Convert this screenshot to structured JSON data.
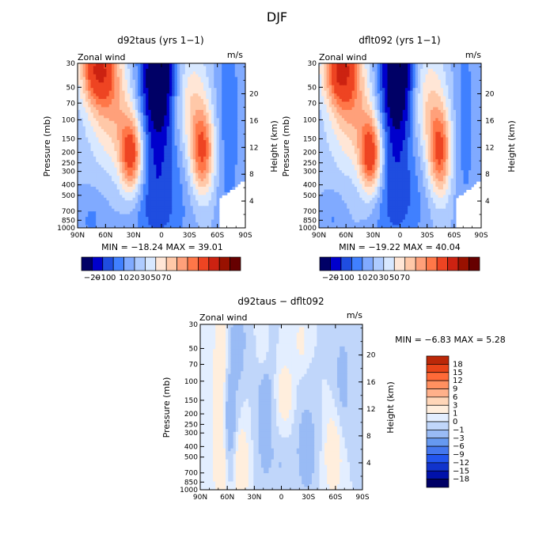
{
  "figure": {
    "title": "DJF"
  },
  "colors": {
    "main_scale": [
      "#000066",
      "#0000cc",
      "#1f4de0",
      "#4080ff",
      "#80aaff",
      "#aecbff",
      "#d8e8ff",
      "#ffe6d6",
      "#ffc8a8",
      "#ffa07a",
      "#ff7748",
      "#ee4422",
      "#cc2211",
      "#991100",
      "#660000"
    ],
    "diff_scale": [
      "#000066",
      "#0011aa",
      "#1133cc",
      "#2255ee",
      "#4477ee",
      "#6699f0",
      "#99bbf5",
      "#c0d6fa",
      "#e3eeff",
      "#ffeedd",
      "#ffd6b8",
      "#ffb08a",
      "#ff9060",
      "#ff6a38",
      "#e84418",
      "#bb2808",
      "#8a1400"
    ]
  },
  "chart_data": [
    {
      "id": "left",
      "type": "contour",
      "title": "d92taus (yrs 1−1)",
      "field_label": "Zonal wind",
      "units": "m/s",
      "xlabel": "",
      "ylabel": "Pressure (mb)",
      "y2label": "Height (km)",
      "x_ticks": [
        "90N",
        "60N",
        "30N",
        "0",
        "30S",
        "60S",
        "90S"
      ],
      "y_ticks": [
        "30",
        "50",
        "70",
        "100",
        "150",
        "200",
        "250",
        "300",
        "400",
        "500",
        "700",
        "850",
        "1000"
      ],
      "y2_ticks": [
        "4",
        "8",
        "12",
        "16",
        "20"
      ],
      "min": -18.24,
      "max": 39.01,
      "minmax_text": "MIN = −18.24   MAX =  39.01",
      "levels": [
        "−20",
        "−10",
        "0",
        "10",
        "20",
        "30",
        "50",
        "70"
      ]
    },
    {
      "id": "right",
      "type": "contour",
      "title": "dflt092 (yrs 1−1)",
      "field_label": "Zonal wind",
      "units": "m/s",
      "ylabel": "Pressure (mb)",
      "y2label": "Height (km)",
      "x_ticks": [
        "90N",
        "60N",
        "30N",
        "0",
        "30S",
        "60S",
        "90S"
      ],
      "y_ticks": [
        "30",
        "50",
        "70",
        "100",
        "150",
        "200",
        "250",
        "300",
        "400",
        "500",
        "700",
        "850",
        "1000"
      ],
      "y2_ticks": [
        "4",
        "8",
        "12",
        "16",
        "20"
      ],
      "min": -19.22,
      "max": 40.04,
      "minmax_text": "MIN = −19.22   MAX =  40.04",
      "levels": [
        "−20",
        "−10",
        "0",
        "10",
        "20",
        "30",
        "50",
        "70"
      ]
    },
    {
      "id": "diff",
      "type": "contour",
      "title": "d92taus − dflt092",
      "field_label": "Zonal wind",
      "units": "m/s",
      "ylabel": "Pressure (mb)",
      "y2label": "Height (km)",
      "x_ticks": [
        "90N",
        "60N",
        "30N",
        "0",
        "30S",
        "60S",
        "90S"
      ],
      "y_ticks": [
        "30",
        "50",
        "70",
        "100",
        "150",
        "200",
        "250",
        "300",
        "400",
        "500",
        "700",
        "850",
        "1000"
      ],
      "y2_ticks": [
        "4",
        "8",
        "12",
        "16",
        "20"
      ],
      "min": -6.83,
      "max": 5.28,
      "minmax_text": "MIN =   −6.83   MAX =   5.28",
      "levels": [
        "18",
        "15",
        "12",
        "9",
        "6",
        "3",
        "1",
        "0",
        "−1",
        "−3",
        "−6",
        "−9",
        "−12",
        "−15",
        "−18"
      ]
    }
  ]
}
